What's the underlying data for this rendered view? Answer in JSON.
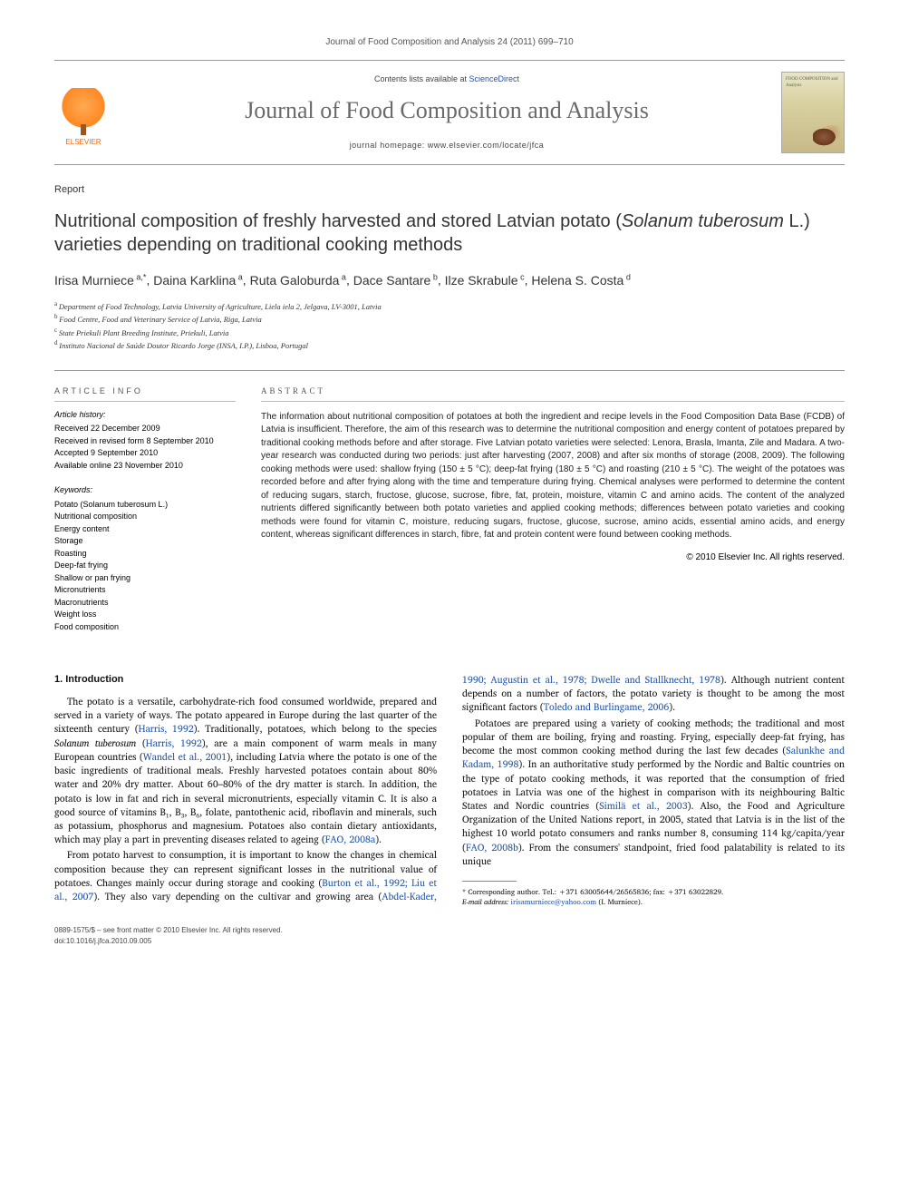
{
  "header": {
    "citation": "Journal of Food Composition and Analysis 24 (2011) 699–710",
    "contents_prefix": "Contents lists available at ",
    "contents_link": "ScienceDirect",
    "journal_title": "Journal of Food Composition and Analysis",
    "homepage_prefix": "journal homepage: ",
    "homepage_url": "www.elsevier.com/locate/jfca",
    "publisher": "ELSEVIER",
    "cover_text": "FOOD COMPOSITION and Analysis"
  },
  "article": {
    "type": "Report",
    "title_pre": "Nutritional composition of freshly harvested and stored Latvian potato (",
    "title_species": "Solanum tuberosum",
    "title_post": " L.) varieties depending on traditional cooking methods",
    "authors_html": "Irisa Murniece",
    "authors": [
      {
        "name": "Irisa Murniece",
        "sup": "a,*"
      },
      {
        "name": "Daina Karklina",
        "sup": "a"
      },
      {
        "name": "Ruta Galoburda",
        "sup": "a"
      },
      {
        "name": "Dace Santare",
        "sup": "b"
      },
      {
        "name": "Ilze Skrabule",
        "sup": "c"
      },
      {
        "name": "Helena S. Costa",
        "sup": "d"
      }
    ],
    "affiliations": [
      {
        "sup": "a",
        "text": "Department of Food Technology, Latvia University of Agriculture, Liela iela 2, Jelgava, LV-3001, Latvia"
      },
      {
        "sup": "b",
        "text": "Food Centre, Food and Veterinary Service of Latvia, Riga, Latvia"
      },
      {
        "sup": "c",
        "text": "State Priekuli Plant Breeding Institute, Priekuli, Latvia"
      },
      {
        "sup": "d",
        "text": "Instituto Nacional de Saúde Doutor Ricardo Jorge (INSA, I.P.), Lisboa, Portugal"
      }
    ]
  },
  "info": {
    "heading": "ARTICLE INFO",
    "history_label": "Article history:",
    "history": [
      "Received 22 December 2009",
      "Received in revised form 8 September 2010",
      "Accepted 9 September 2010",
      "Available online 23 November 2010"
    ],
    "keywords_label": "Keywords:",
    "keywords": [
      "Potato (Solanum tuberosum L.)",
      "Nutritional composition",
      "Energy content",
      "Storage",
      "Roasting",
      "Deep-fat frying",
      "Shallow or pan frying",
      "Micronutrients",
      "Macronutrients",
      "Weight loss",
      "Food composition"
    ]
  },
  "abstract": {
    "heading": "ABSTRACT",
    "text": "The information about nutritional composition of potatoes at both the ingredient and recipe levels in the Food Composition Data Base (FCDB) of Latvia is insufficient. Therefore, the aim of this research was to determine the nutritional composition and energy content of potatoes prepared by traditional cooking methods before and after storage. Five Latvian potato varieties were selected: Lenora, Brasla, Imanta, Zile and Madara. A two-year research was conducted during two periods: just after harvesting (2007, 2008) and after six months of storage (2008, 2009). The following cooking methods were used: shallow frying (150 ± 5 °C); deep-fat frying (180 ± 5 °C) and roasting (210 ± 5 °C). The weight of the potatoes was recorded before and after frying along with the time and temperature during frying. Chemical analyses were performed to determine the content of reducing sugars, starch, fructose, glucose, sucrose, fibre, fat, protein, moisture, vitamin C and amino acids. The content of the analyzed nutrients differed significantly between both potato varieties and applied cooking methods; differences between potato varieties and cooking methods were found for vitamin C, moisture, reducing sugars, fructose, glucose, sucrose, amino acids, essential amino acids, and energy content, whereas significant differences in starch, fibre, fat and protein content were found between cooking methods.",
    "copyright": "© 2010 Elsevier Inc. All rights reserved."
  },
  "body": {
    "section1_heading": "1. Introduction",
    "p1_a": "The potato is a versatile, carbohydrate-rich food consumed worldwide, prepared and served in a variety of ways. The potato appeared in Europe during the last quarter of the sixteenth century (",
    "p1_c1": "Harris, 1992",
    "p1_b": "). Traditionally, potatoes, which belong to the species ",
    "p1_species": "Solanum tuberosum",
    "p1_c": " (",
    "p1_c2": "Harris, 1992",
    "p1_d": "), are a main component of warm meals in many European countries (",
    "p1_c3": "Wandel et al., 2001",
    "p1_e": "), including Latvia where the potato is one of the basic ingredients of traditional meals. Freshly harvested potatoes contain about 80% water and 20% dry matter. About 60–80% of the dry matter is starch. In addition, the potato is low in fat and rich in several micronutrients, especially vitamin C. It is also a good source of vitamins B₁, B₃, B₆, folate, pantothenic acid, riboflavin and minerals, such as potassium, phosphorus and magnesium. Potatoes also contain dietary antioxidants, which may play a part in preventing diseases related to ageing (",
    "p1_c4": "FAO, 2008a",
    "p1_f": ").",
    "p2_a": "From potato harvest to consumption, it is important to know the changes in chemical composition because they can represent significant losses in the nutritional value of potatoes. Changes mainly occur during storage and cooking (",
    "p2_c1": "Burton et al., 1992; Liu et al., 2007",
    "p2_b": "). They also vary depending on the cultivar and growing area (",
    "p2_c2": "Abdel-Kader, 1990; Augustin et al., 1978; Dwelle and Stallknecht, 1978",
    "p2_c": "). Although nutrient content depends on a number of factors, the potato variety is thought to be among the most significant factors (",
    "p2_c3": "Toledo and Burlingame, 2006",
    "p2_d": ").",
    "p3_a": "Potatoes are prepared using a variety of cooking methods; the traditional and most popular of them are boiling, frying and roasting. Frying, especially deep-fat frying, has become the most common cooking method during the last few decades (",
    "p3_c1": "Salunkhe and Kadam, 1998",
    "p3_b": "). In an authoritative study performed by the Nordic and Baltic countries on the type of potato cooking methods, it was reported that the consumption of fried potatoes in Latvia was one of the highest in comparison with its neighbouring Baltic States and Nordic countries (",
    "p3_c2": "Similä et al., 2003",
    "p3_c": "). Also, the Food and Agriculture Organization of the United Nations report, in 2005, stated that Latvia is in the list of the highest 10 world potato consumers and ranks number 8, consuming 114 kg/capita/year (",
    "p3_c3": "FAO, 2008b",
    "p3_d": "). From the consumers' standpoint, fried food palatability is related to its unique"
  },
  "footnotes": {
    "corr": "* Corresponding author. Tel.: +371 63005644/26565836; fax: +371 63022829.",
    "email_label": "E-mail address: ",
    "email": "irisamurniece@yahoo.com",
    "email_who": " (I. Murniece)."
  },
  "footer": {
    "issn": "0889-1575/$ – see front matter © 2010 Elsevier Inc. All rights reserved.",
    "doi": "doi:10.1016/j.jfca.2010.09.005"
  },
  "colors": {
    "link": "#2255aa",
    "elsevier_orange": "#ff6600",
    "heading_gray": "#6a6a6a",
    "rule": "#999999"
  }
}
